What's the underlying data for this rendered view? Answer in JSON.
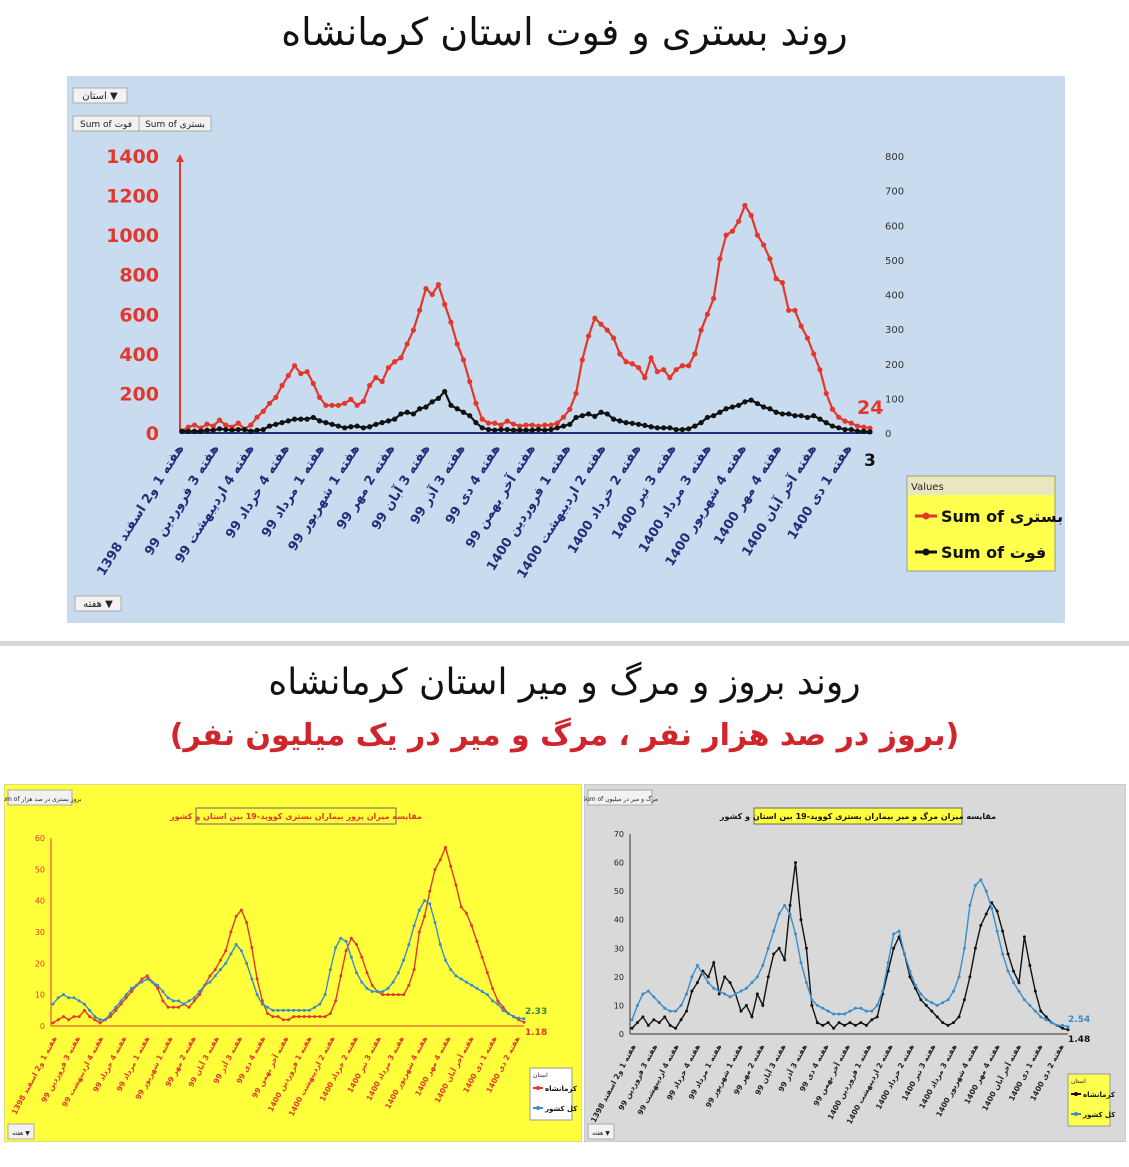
{
  "page": {
    "title1": "روند بستری و فوت استان کرمانشاه",
    "title2": "روند بروز و مرگ و میر استان کرمانشاه",
    "subtitle2": "(بروز در صد هزار نفر ، مرگ و میر در یک میلیون نفر)"
  },
  "colors": {
    "chart1_bg": "#c9dcef",
    "chart2_bg": "#ffff3c",
    "chart3_bg": "#d9d9d9",
    "red": "#e2372c",
    "black": "#111111",
    "blue": "#3b8cc9",
    "navy": "#1f2f79",
    "legend_bg": "#ffff4d"
  },
  "chart_data": [
    {
      "type": "line",
      "title": "",
      "filter_button": "استان",
      "field_buttons": [
        "Sum of فوت",
        "Sum of بستری"
      ],
      "axis_field_button": "هفته",
      "yleft_ticks": [
        "1400",
        "1200",
        "1000",
        "800",
        "600",
        "400",
        "200",
        "0"
      ],
      "yleft_lim": [
        0,
        1400
      ],
      "yright_ticks": [
        "800",
        "700",
        "600",
        "500",
        "400",
        "300",
        "200",
        "100",
        "0"
      ],
      "yright_lim": [
        0,
        800
      ],
      "x_tick_labels": [
        "هفته 1 و2 اسفند 1398",
        "هفته 3 فروردین 99",
        "هفته 4 اردیبهشت 99",
        "هفته 4 خرداد 99",
        "هفته 1 مرداد 99",
        "هفته 1 شهریور 99",
        "هفته 2 مهر 99",
        "هفته 3 آبان 99",
        "هفته 3 آذر 99",
        "هفته 4 دی 99",
        "هفته آخر بهمن 99",
        "هفته 1 فروردین 1400",
        "هفته 2 اردیبهشت 1400",
        "هفته 2 خرداد 1400",
        "هفته 3 تیر 1400",
        "هفته 3 مرداد 1400",
        "هفته 4 شهریور 1400",
        "هفته 4 مهر 1400",
        "هفته آخر آبان 1400",
        "هفته 1 دی 1400"
      ],
      "end_label_left": "24",
      "end_label_right": "3",
      "legend_title": "Values",
      "series": [
        {
          "name": "Sum of بستری",
          "axis": "left",
          "color": "#e2372c",
          "values": [
            10,
            30,
            40,
            25,
            45,
            35,
            65,
            40,
            30,
            50,
            20,
            40,
            80,
            110,
            150,
            180,
            240,
            290,
            340,
            300,
            310,
            250,
            180,
            140,
            140,
            140,
            150,
            170,
            140,
            160,
            240,
            280,
            260,
            330,
            360,
            380,
            450,
            520,
            620,
            730,
            700,
            750,
            650,
            560,
            450,
            370,
            260,
            150,
            70,
            50,
            50,
            40,
            60,
            45,
            35,
            40,
            40,
            35,
            40,
            40,
            50,
            80,
            120,
            200,
            370,
            490,
            580,
            550,
            520,
            480,
            400,
            360,
            350,
            330,
            280,
            380,
            310,
            320,
            280,
            320,
            340,
            340,
            400,
            520,
            600,
            680,
            880,
            1000,
            1020,
            1070,
            1150,
            1100,
            1000,
            950,
            880,
            780,
            760,
            620,
            620,
            540,
            480,
            400,
            320,
            200,
            120,
            80,
            60,
            50,
            35,
            30,
            24
          ]
        },
        {
          "name": "Sum of فوت",
          "axis": "right",
          "color": "#111111",
          "values": [
            5,
            5,
            5,
            5,
            8,
            8,
            12,
            10,
            8,
            10,
            10,
            5,
            8,
            10,
            20,
            25,
            30,
            35,
            40,
            40,
            40,
            45,
            35,
            30,
            25,
            20,
            15,
            18,
            20,
            15,
            18,
            25,
            30,
            35,
            40,
            55,
            60,
            55,
            70,
            75,
            90,
            100,
            120,
            80,
            70,
            60,
            50,
            30,
            15,
            10,
            8,
            10,
            10,
            8,
            8,
            8,
            8,
            10,
            8,
            10,
            15,
            20,
            25,
            45,
            50,
            55,
            48,
            60,
            55,
            40,
            35,
            30,
            28,
            25,
            22,
            18,
            15,
            15,
            15,
            10,
            10,
            12,
            20,
            30,
            45,
            50,
            60,
            70,
            75,
            80,
            90,
            95,
            85,
            75,
            70,
            60,
            55,
            55,
            50,
            50,
            45,
            50,
            40,
            30,
            20,
            15,
            10,
            10,
            5,
            5,
            3
          ]
        }
      ]
    },
    {
      "type": "line",
      "title": "مقایسه میزان بروز بیماران بستری کووید-19 بین استان و کشور",
      "field_button": "Sum of بروز بستری در صد هزار",
      "axis_field_button": "هفته",
      "y_ticks": [
        "60",
        "50",
        "40",
        "30",
        "20",
        "10",
        "0"
      ],
      "ylim": [
        0,
        60
      ],
      "x_tick_labels": [
        "هفته 1 و2 اسفند 1398",
        "هفته 3 فروردین 99",
        "هفته 4 اردیبهشت 99",
        "هفته 4 خرداد 99",
        "هفته 1 مرداد 99",
        "هفته 1 شهریور 99",
        "هفته 2 مهر 99",
        "هفته 3 آبان 99",
        "هفته 3 آذر 99",
        "هفته 4 دی 99",
        "هفته آخر بهمن 99",
        "هفته 1 فروردین 1400",
        "هفته 2 اردیبهشت 1400",
        "هفته 2 خرداد 1400",
        "هفته 3 تیر 1400",
        "هفته 3 مرداد 1400",
        "هفته 4 شهریور 1400",
        "هفته 4 مهر 1400",
        "هفته آخر آبان 1400",
        "هفته 1 دی 1400",
        "هفته 2 دی 1400"
      ],
      "end_label_blue": "2.33",
      "end_label_red": "1.18",
      "legend_title": "استان",
      "series": [
        {
          "name": "کرمانشاه",
          "color": "#e2372c",
          "values": [
            1,
            2,
            3,
            2,
            3,
            3,
            5,
            3,
            2,
            1,
            2,
            3,
            5,
            7,
            9,
            11,
            13,
            15,
            16,
            14,
            12,
            8,
            6,
            6,
            6,
            7,
            6,
            8,
            10,
            13,
            16,
            18,
            21,
            24,
            30,
            35,
            37,
            33,
            25,
            15,
            8,
            4,
            3,
            3,
            2,
            2,
            3,
            3,
            3,
            3,
            3,
            3,
            3,
            4,
            8,
            16,
            24,
            28,
            26,
            22,
            17,
            13,
            11,
            10,
            10,
            10,
            10,
            10,
            13,
            18,
            30,
            35,
            43,
            50,
            53,
            57,
            51,
            45,
            38,
            36,
            32,
            27,
            22,
            17,
            12,
            8,
            6,
            4,
            3,
            2,
            1.2
          ]
        },
        {
          "name": "کل کشور",
          "color": "#3b8cc9",
          "values": [
            7,
            9,
            10,
            9,
            9,
            8,
            7,
            5,
            3,
            2,
            2,
            4,
            6,
            8,
            10,
            12,
            13,
            14,
            15,
            14,
            13,
            11,
            9,
            8,
            8,
            7,
            8,
            9,
            11,
            13,
            14,
            16,
            18,
            20,
            23,
            26,
            24,
            20,
            15,
            10,
            7,
            6,
            5,
            5,
            5,
            5,
            5,
            5,
            5,
            5,
            6,
            7,
            10,
            18,
            25,
            28,
            27,
            22,
            17,
            14,
            12,
            11,
            11,
            11,
            12,
            14,
            17,
            21,
            26,
            32,
            37,
            40,
            39,
            33,
            26,
            21,
            18,
            16,
            15,
            14,
            13,
            12,
            11,
            10,
            8,
            7,
            5,
            4,
            3,
            2.5,
            2.33
          ]
        }
      ]
    },
    {
      "type": "line",
      "title": "مقایسه میزان مرگ و میر بیماران بستری کووید-19 بین استان و کشور",
      "field_button": "Sum of مرگ و میر در میلیون",
      "axis_field_button": "هفته",
      "y_ticks": [
        "70",
        "60",
        "50",
        "40",
        "30",
        "20",
        "10",
        "0"
      ],
      "ylim": [
        0,
        70
      ],
      "x_tick_labels": [
        "هفته 1 و2 اسفند 1398",
        "هفته 3 فروردین 99",
        "هفته 4 اردیبهشت 99",
        "هفته 4 خرداد 99",
        "هفته 1 مرداد 99",
        "هفته 1 شهریور 99",
        "هفته 2 مهر 99",
        "هفته 3 آبان 99",
        "هفته 3 آذر 99",
        "هفته 4 دی 99",
        "هفته آخر بهمن 99",
        "هفته 1 فروردین 1400",
        "هفته 2 اردیبهشت 1400",
        "هفته 2 خرداد 1400",
        "هفته 3 تیر 1400",
        "هفته 3 مرداد 1400",
        "هفته 4 شهریور 1400",
        "هفته 4 مهر 1400",
        "هفته آخر آبان 1400",
        "هفته 1 دی 1400",
        "هفته 2 دی 1400"
      ],
      "end_label_blue": "2.54",
      "end_label_black": "1.48",
      "legend_title": "استان",
      "series": [
        {
          "name": "کرمانشاه",
          "color": "#111111",
          "values": [
            2,
            4,
            6,
            3,
            5,
            4,
            6,
            3,
            2,
            5,
            8,
            15,
            18,
            22,
            20,
            25,
            14,
            20,
            18,
            14,
            8,
            10,
            6,
            14,
            10,
            20,
            28,
            30,
            26,
            45,
            60,
            40,
            30,
            10,
            4,
            3,
            4,
            2,
            4,
            3,
            4,
            3,
            4,
            3,
            5,
            6,
            14,
            22,
            30,
            34,
            28,
            20,
            16,
            12,
            10,
            8,
            6,
            4,
            3,
            4,
            6,
            12,
            20,
            30,
            38,
            42,
            46,
            43,
            36,
            28,
            22,
            18,
            34,
            24,
            15,
            8,
            6,
            4,
            3,
            2,
            1.48
          ]
        },
        {
          "name": "کل کشور",
          "color": "#3b8cc9",
          "values": [
            5,
            10,
            14,
            15,
            13,
            11,
            9,
            8,
            8,
            10,
            14,
            20,
            24,
            21,
            18,
            16,
            15,
            14,
            13,
            14,
            15,
            16,
            18,
            20,
            24,
            30,
            36,
            42,
            45,
            42,
            35,
            25,
            18,
            12,
            10,
            9,
            8,
            7,
            7,
            7,
            8,
            9,
            9,
            8,
            8,
            10,
            15,
            25,
            35,
            36,
            28,
            22,
            17,
            14,
            12,
            11,
            10,
            11,
            12,
            15,
            20,
            30,
            45,
            52,
            54,
            50,
            44,
            36,
            28,
            22,
            18,
            15,
            12,
            10,
            8,
            6,
            5,
            4,
            3,
            3,
            2.54
          ]
        }
      ]
    }
  ]
}
